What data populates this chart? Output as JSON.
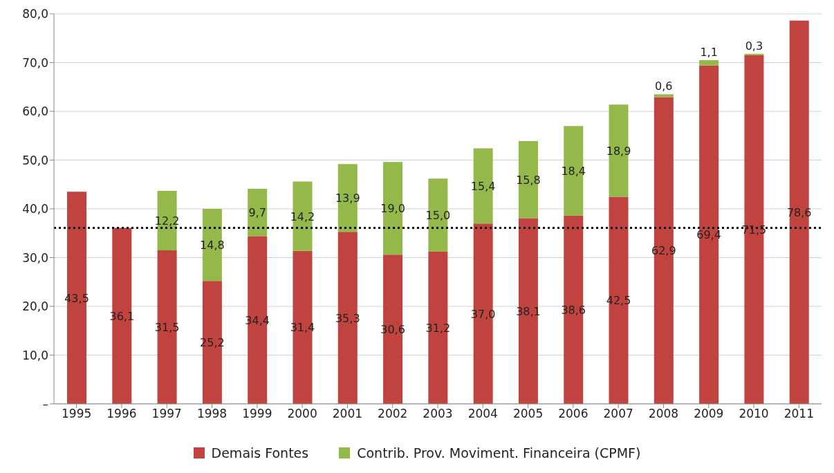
{
  "chart_data": {
    "type": "bar",
    "stacked": true,
    "categories": [
      "1995",
      "1996",
      "1997",
      "1998",
      "1999",
      "2000",
      "2001",
      "2002",
      "2003",
      "2004",
      "2005",
      "2006",
      "2007",
      "2008",
      "2009",
      "2010",
      "2011"
    ],
    "series": [
      {
        "name": "Demais Fontes",
        "color": "#c0433f",
        "values": [
          43.5,
          36.1,
          31.5,
          25.2,
          34.4,
          31.4,
          35.3,
          30.6,
          31.2,
          37.0,
          38.1,
          38.6,
          42.5,
          62.9,
          69.4,
          71.5,
          78.6
        ],
        "value_labels": [
          "43,5",
          "36,1",
          "31,5",
          "25,2",
          "34,4",
          "31,4",
          "35,3",
          "30,6",
          "31,2",
          "37,0",
          "38,1",
          "38,6",
          "42,5",
          "62,9",
          "69,4",
          "71,5",
          "78,6"
        ]
      },
      {
        "name": "Contrib. Prov. Moviment. Financeira (CPMF)",
        "color": "#94b84a",
        "values": [
          null,
          null,
          12.2,
          14.8,
          9.7,
          14.2,
          13.9,
          19.0,
          15.0,
          15.4,
          15.8,
          18.4,
          18.9,
          0.6,
          1.1,
          0.3,
          null
        ],
        "value_labels": [
          null,
          null,
          "12,2",
          "14,8",
          "9,7",
          "14,2",
          "13,9",
          "19,0",
          "15,0",
          "15,4",
          "15,8",
          "18,4",
          "18,9",
          "0,6",
          "1,1",
          "0,3",
          null
        ]
      }
    ],
    "ylim": [
      0,
      80
    ],
    "yticks": [
      {
        "value": 0,
        "label": "–"
      },
      {
        "value": 10,
        "label": "10,0"
      },
      {
        "value": 20,
        "label": "20,0"
      },
      {
        "value": 30,
        "label": "30,0"
      },
      {
        "value": 40,
        "label": "40,0"
      },
      {
        "value": 50,
        "label": "50,0"
      },
      {
        "value": 60,
        "label": "60,0"
      },
      {
        "value": 70,
        "label": "70,0"
      },
      {
        "value": 80,
        "label": "80,0"
      }
    ],
    "ref_lines": [
      {
        "axis": "y",
        "value": 36.1,
        "color": "#000000",
        "line_style": "dotted"
      }
    ],
    "grid": "y",
    "legend": "bottom"
  }
}
